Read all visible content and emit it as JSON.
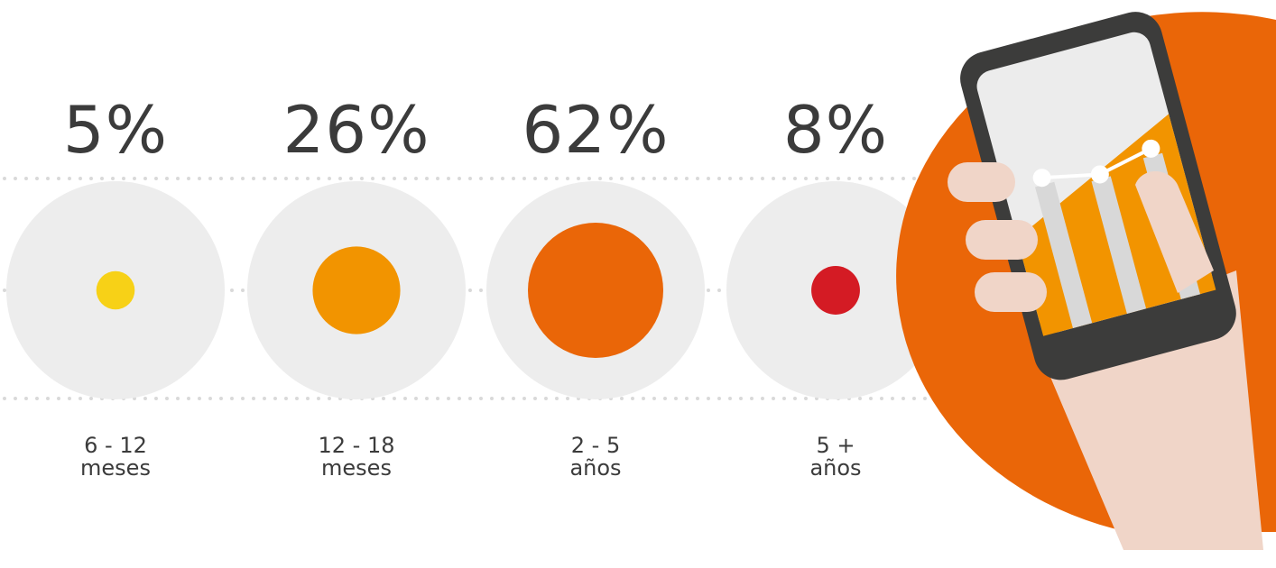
{
  "chart_data": {
    "type": "bubble",
    "categories": [
      {
        "line1": "6 - 12",
        "line2": "meses"
      },
      {
        "line1": "12 - 18",
        "line2": "meses"
      },
      {
        "line1": "2 - 5",
        "line2": "años"
      },
      {
        "line1": "5 +",
        "line2": "años"
      }
    ],
    "values": [
      5,
      26,
      62,
      8
    ],
    "value_labels": [
      "5%",
      "26%",
      "62%",
      "8%"
    ],
    "colors": [
      "#f7d117",
      "#f29400",
      "#ea6608",
      "#d41b24"
    ],
    "unit": "%"
  },
  "illustration": {
    "description_icon": "hand-holding-phone-icon",
    "colors": {
      "accent": "#ea6608",
      "phone": "#3c3c3b",
      "skin": "#f0d5c8"
    }
  },
  "colors": {
    "circle_bg": "#ededed",
    "dots": "#d9d9d9",
    "text": "#3b3b3b"
  }
}
